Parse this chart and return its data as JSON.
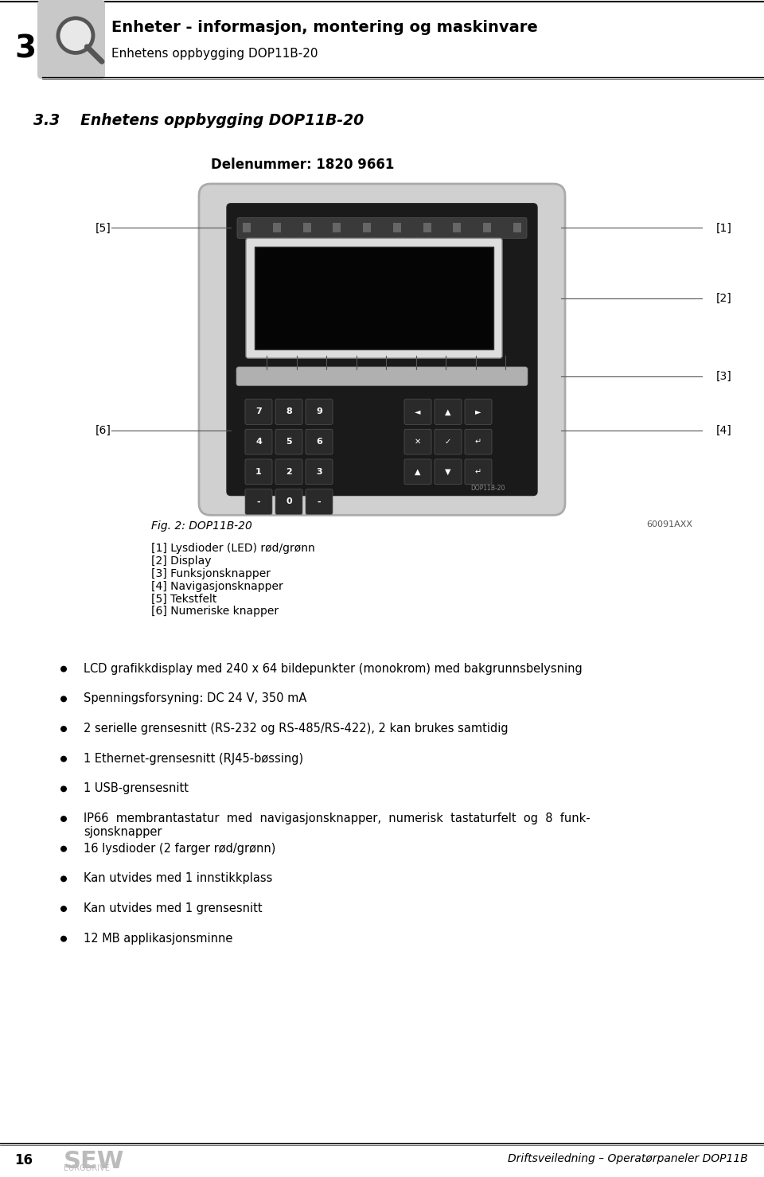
{
  "bg_color": "#ffffff",
  "page_num": "16",
  "chapter_num": "3",
  "header_title_bold": "Enheter - informasjon, montering og maskinvare",
  "header_title_sub": "Enhetens oppbygging DOP11B-20",
  "section_title": "3.3    Enhetens oppbygging DOP11B-20",
  "part_number_label": "Delenummer: 1820 9661",
  "fig_caption": "Fig. 2: DOP11B-20",
  "fig_id": "60091AXX",
  "legend": [
    "[1] Lysdioder (LED) rød/grønn",
    "[2] Display",
    "[3] Funksjonsknapper",
    "[4] Navigasjonsknapper",
    "[5] Tekstfelt",
    "[6] Numeriske knapper"
  ],
  "bullets": [
    "LCD grafikkdisplay med 240 x 64 bildepunkter (monokrom) med bakgrunnsbelysning",
    "Spenningsforsyning: DC 24 V, 350 mA",
    "2 serielle grensesnitt (RS-232 og RS-485/RS-422), 2 kan brukes samtidig",
    "1 Ethernet-grensesnitt (RJ45-bøssing)",
    "1 USB-grensesnitt",
    "IP66  membrantastatur  med  navigasjonsknapper,  numerisk  tastaturfelt  og  8  funk-\nsjonsknapper",
    "16 lysdioder (2 farger rød/grønn)",
    "Kan utvides med 1 innstikkplass",
    "Kan utvides med 1 grensesnitt",
    "12 MB applikasjonsminne"
  ],
  "footer_right": "Driftsveiledning – Operatørpaneler DOP11B",
  "sew_text": "SEW\nEURODRIVE"
}
